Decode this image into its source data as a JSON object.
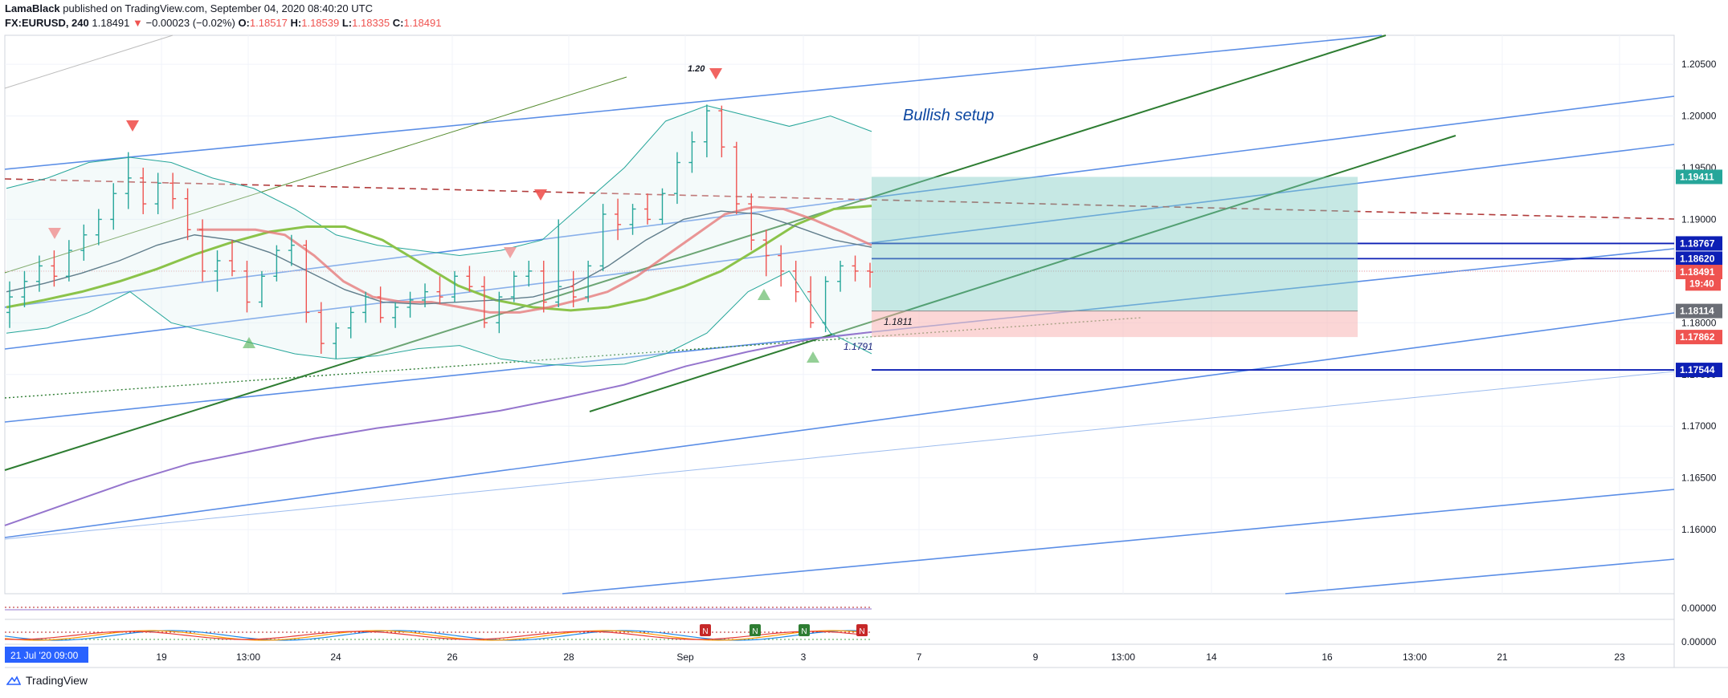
{
  "header": {
    "author": "LamaBlack",
    "published_text": "published on TradingView.com, September 04, 2020 08:40:20 UTC",
    "symbol": "FX:EURUSD, 240",
    "last": "1.18491",
    "change": "−0.00023 (−0.02%)",
    "open_label": "O:",
    "open": "1.18517",
    "high_label": "H:",
    "high": "1.18539",
    "low_label": "L:",
    "low": "1.18335",
    "close_label": "C:",
    "close": "1.18491"
  },
  "footer": {
    "brand": "TradingView",
    "logo_icon": "tradingview-logo-icon"
  },
  "colors": {
    "up_candle": "#26a69a",
    "down_candle": "#ef5350",
    "channel": "#5b8ee6",
    "trend": "#2e7d32",
    "resistance": "#b03a3a",
    "ma_purple": "#9575cd",
    "target_zone": "#80cbc4",
    "stop_zone": "#f8bbbb",
    "level_line": "#0d1fb5"
  },
  "chart_data": {
    "type": "candlestick",
    "symbol": "FX:EURUSD",
    "timeframe": "240",
    "ylim": [
      1.1538,
      1.2078
    ],
    "price_ticks": [
      "1.20500",
      "1.20000",
      "1.19500",
      "1.19000",
      "1.18500",
      "1.18000",
      "1.17500",
      "1.17000",
      "1.16500",
      "1.16000"
    ],
    "time_ticks": [
      "19",
      "13:00",
      "24",
      "26",
      "28",
      "Sep",
      "3",
      "7",
      "9",
      "13:00",
      "14",
      "16",
      "13:00",
      "21",
      "23"
    ],
    "crosshair_time_label": "21 Jul '20   09:00",
    "candles_ohlc": [
      [
        1.181,
        1.184,
        1.1795,
        1.1825
      ],
      [
        1.1825,
        1.185,
        1.1815,
        1.184
      ],
      [
        1.184,
        1.1865,
        1.183,
        1.1855
      ],
      [
        1.1855,
        1.187,
        1.1835,
        1.1845
      ],
      [
        1.1845,
        1.188,
        1.184,
        1.187
      ],
      [
        1.187,
        1.1895,
        1.186,
        1.1885
      ],
      [
        1.1885,
        1.191,
        1.1875,
        1.19
      ],
      [
        1.19,
        1.1935,
        1.189,
        1.1925
      ],
      [
        1.1925,
        1.1965,
        1.191,
        1.194
      ],
      [
        1.194,
        1.195,
        1.1905,
        1.1915
      ],
      [
        1.1915,
        1.1945,
        1.1905,
        1.1935
      ],
      [
        1.1935,
        1.1945,
        1.191,
        1.192
      ],
      [
        1.192,
        1.193,
        1.188,
        1.189
      ],
      [
        1.189,
        1.19,
        1.184,
        1.185
      ],
      [
        1.185,
        1.187,
        1.183,
        1.186
      ],
      [
        1.186,
        1.188,
        1.1845,
        1.185
      ],
      [
        1.185,
        1.186,
        1.181,
        1.182
      ],
      [
        1.182,
        1.185,
        1.1815,
        1.1845
      ],
      [
        1.1845,
        1.1875,
        1.184,
        1.187
      ],
      [
        1.187,
        1.1885,
        1.1855,
        1.1875
      ],
      [
        1.1875,
        1.188,
        1.18,
        1.181
      ],
      [
        1.181,
        1.182,
        1.177,
        1.178
      ],
      [
        1.178,
        1.18,
        1.1765,
        1.1795
      ],
      [
        1.1795,
        1.1815,
        1.1785,
        1.181
      ],
      [
        1.181,
        1.183,
        1.18,
        1.1825
      ],
      [
        1.1825,
        1.1835,
        1.18,
        1.1805
      ],
      [
        1.1805,
        1.182,
        1.1795,
        1.1815
      ],
      [
        1.1815,
        1.183,
        1.1805,
        1.1822
      ],
      [
        1.1822,
        1.1838,
        1.1815,
        1.183
      ],
      [
        1.183,
        1.1845,
        1.1818,
        1.1825
      ],
      [
        1.1825,
        1.185,
        1.182,
        1.1845
      ],
      [
        1.1845,
        1.1855,
        1.183,
        1.1835
      ],
      [
        1.1835,
        1.1845,
        1.1795,
        1.18
      ],
      [
        1.18,
        1.183,
        1.179,
        1.1825
      ],
      [
        1.1825,
        1.185,
        1.182,
        1.1845
      ],
      [
        1.1845,
        1.186,
        1.1835,
        1.185
      ],
      [
        1.185,
        1.186,
        1.181,
        1.182
      ],
      [
        1.182,
        1.19,
        1.1815,
        1.1835
      ],
      [
        1.1835,
        1.185,
        1.1815,
        1.1825
      ],
      [
        1.1825,
        1.186,
        1.182,
        1.1855
      ],
      [
        1.1855,
        1.1915,
        1.185,
        1.1905
      ],
      [
        1.1905,
        1.192,
        1.188,
        1.1895
      ],
      [
        1.1895,
        1.1915,
        1.1885,
        1.191
      ],
      [
        1.191,
        1.1925,
        1.1895,
        1.19
      ],
      [
        1.19,
        1.193,
        1.1895,
        1.1925
      ],
      [
        1.1925,
        1.1965,
        1.1915,
        1.1955
      ],
      [
        1.1955,
        1.1985,
        1.1945,
        1.1975
      ],
      [
        1.1975,
        1.2011,
        1.196,
        1.2005
      ],
      [
        1.2005,
        1.201,
        1.196,
        1.197
      ],
      [
        1.197,
        1.1975,
        1.1905,
        1.1915
      ],
      [
        1.1915,
        1.1925,
        1.187,
        1.188
      ],
      [
        1.188,
        1.189,
        1.1845,
        1.1865
      ],
      [
        1.1865,
        1.1875,
        1.1835,
        1.185
      ],
      [
        1.185,
        1.186,
        1.182,
        1.183
      ],
      [
        1.183,
        1.1845,
        1.1795,
        1.18
      ],
      [
        1.18,
        1.1845,
        1.1791,
        1.184
      ],
      [
        1.184,
        1.186,
        1.183,
        1.1855
      ],
      [
        1.1855,
        1.1865,
        1.184,
        1.185
      ],
      [
        1.185,
        1.1858,
        1.1834,
        1.1849
      ]
    ],
    "moving_averages": {
      "green": [
        1.1815,
        1.1822,
        1.183,
        1.184,
        1.1852,
        1.1866,
        1.1878,
        1.1888,
        1.1893,
        1.1893,
        1.188,
        1.1858,
        1.1836,
        1.1822,
        1.1815,
        1.1812,
        1.1815,
        1.1823,
        1.1835,
        1.185,
        1.1872,
        1.1895,
        1.191,
        1.1913
      ],
      "red": [
        1.189,
        1.189,
        1.189,
        1.1885,
        1.1865,
        1.184,
        1.1825,
        1.182,
        1.182,
        1.1815,
        1.181,
        1.181,
        1.1815,
        1.1822,
        1.183,
        1.1845,
        1.1865,
        1.1885,
        1.1905,
        1.1912,
        1.191,
        1.19,
        1.1888,
        1.1875
      ],
      "gray": [
        1.183,
        1.1838,
        1.1848,
        1.186,
        1.1875,
        1.1885,
        1.188,
        1.1868,
        1.185,
        1.1832,
        1.182,
        1.1818,
        1.182,
        1.1822,
        1.1825,
        1.1835,
        1.1855,
        1.188,
        1.19,
        1.1908,
        1.1905,
        1.1893,
        1.188,
        1.1873
      ],
      "purple": [
        1.1604,
        1.1625,
        1.1646,
        1.1664,
        1.1676,
        1.1688,
        1.1698,
        1.1706,
        1.1715,
        1.1727,
        1.174,
        1.1758,
        1.1772,
        1.1784,
        1.1791
      ]
    },
    "bollinger_upper": [
      1.193,
      1.194,
      1.1955,
      1.196,
      1.1955,
      1.194,
      1.193,
      1.191,
      1.1885,
      1.1875,
      1.187,
      1.1865,
      1.187,
      1.188,
      1.1915,
      1.195,
      1.1995,
      1.201,
      1.2,
      1.199,
      1.2,
      1.1985
    ],
    "bollinger_lower": [
      1.179,
      1.1795,
      1.181,
      1.183,
      1.18,
      1.179,
      1.178,
      1.177,
      1.1765,
      1.1768,
      1.1775,
      1.1778,
      1.1765,
      1.176,
      1.1758,
      1.176,
      1.177,
      1.179,
      1.183,
      1.185,
      1.179,
      1.177
    ],
    "levels": [
      {
        "label": "1.19411",
        "price": 1.19411,
        "color": "#26a69a"
      },
      {
        "label": "1.18767",
        "price": 1.18767,
        "color": "#0d1fb5"
      },
      {
        "label": "1.18620",
        "price": 1.1862,
        "color": "#0d1fb5"
      },
      {
        "label": "1.18491",
        "price": 1.18491,
        "color": "#ef5350"
      },
      {
        "label": "19:40",
        "price": 1.1838,
        "color": "#ef5350"
      },
      {
        "label": "1.18114",
        "price": 1.18114,
        "color": "#6b6e76"
      },
      {
        "label": "1.17862",
        "price": 1.17862,
        "color": "#ef5350"
      },
      {
        "label": "1.17544",
        "price": 1.17544,
        "color": "#0d1fb5"
      }
    ],
    "position": {
      "entry": 1.18114,
      "target": 1.19411,
      "stop": 1.17862
    },
    "annotations": {
      "setup_text": "Bullish setup",
      "peak_label": "1.20",
      "entry_label": "1.1811",
      "low_label": "1.1791",
      "signal_letters": [
        "N",
        "N",
        "N",
        "N"
      ]
    },
    "oscillator_ticks": [
      "0.00000",
      "0.00000"
    ]
  }
}
